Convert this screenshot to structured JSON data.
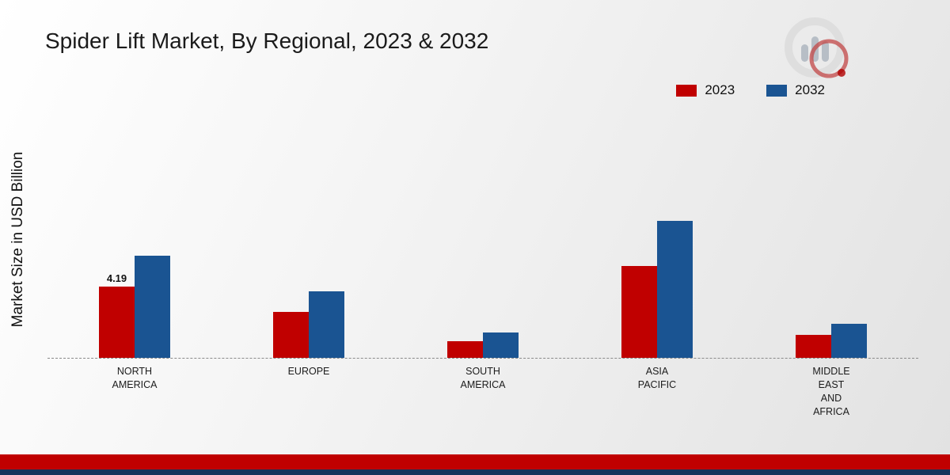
{
  "title": "Spider Lift Market, By Regional, 2023 & 2032",
  "ylabel": "Market Size in USD Billion",
  "legend": [
    {
      "label": "2023",
      "color": "#c00000"
    },
    {
      "label": "2032",
      "color": "#1a5492"
    }
  ],
  "chart_data": {
    "type": "bar",
    "title": "Spider Lift Market, By Regional, 2023 & 2032",
    "xlabel": "",
    "ylabel": "Market Size in USD Billion",
    "ylim": [
      0,
      9
    ],
    "grid": false,
    "legend_position": "top-right",
    "categories": [
      "NORTH AMERICA",
      "EUROPE",
      "SOUTH AMERICA",
      "ASIA PACIFIC",
      "MIDDLE EAST AND AFRICA"
    ],
    "series": [
      {
        "name": "2023",
        "color": "#c00000",
        "values": [
          4.19,
          2.7,
          1.0,
          5.4,
          1.35
        ]
      },
      {
        "name": "2032",
        "color": "#1a5492",
        "values": [
          6.0,
          3.9,
          1.5,
          8.05,
          2.0
        ]
      }
    ],
    "annotations": [
      {
        "series": "2023",
        "category": "NORTH AMERICA",
        "text": "4.19"
      }
    ]
  },
  "footer": {
    "red_band_color": "#c00000",
    "blue_band_color": "#16365c"
  },
  "logo_icon": "market-research-future-logo"
}
